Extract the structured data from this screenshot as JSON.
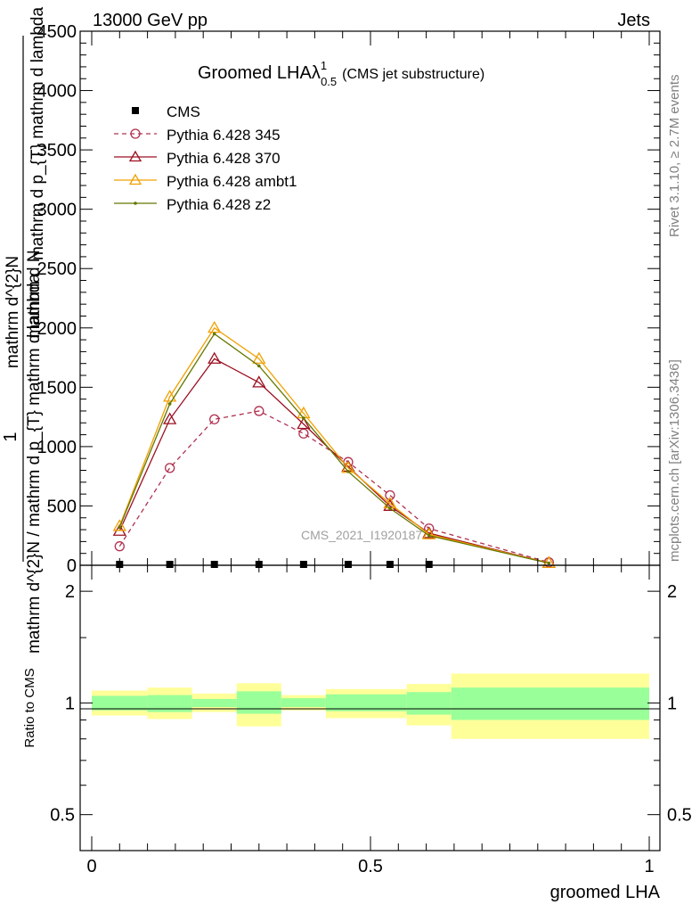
{
  "header": {
    "left": "13000 GeV pp",
    "right": "Jets",
    "watermark": "CMS_2021_I1920187",
    "side_top": "Rivet 3.1.10, ≥ 2.7M events",
    "side_bottom": "mcplots.cern.ch [arXiv:1306.3436]"
  },
  "chart_data": [
    {
      "panel": "main",
      "type": "line",
      "title_main": "Groomed LHAλ",
      "title_sup": "1",
      "title_sub": "0.5",
      "title_note": "(CMS jet substructure)",
      "ylabel": {
        "prefix": "1",
        "numerator": "mathrm d^{2}N",
        "denominator": "mathrm d N / mathrm d p_{T} mathrm d lambda",
        "line1": "mathrm d N",
        "line2": "mathrm d^{2}N / mathrm d p_{T} mathrm d lambda",
        "top_a": "mathrm d^{2}N",
        "top_b": "mathrm d p_{T} mathrm d lambda"
      },
      "xlim": [
        0,
        1
      ],
      "ylim": [
        0,
        4500
      ],
      "yticks": [
        0,
        500,
        1000,
        1500,
        2000,
        2500,
        3000,
        3500,
        4000,
        4500
      ],
      "ytick_labels": [
        "0",
        "500",
        "1000",
        "1500",
        "2000",
        "2500",
        "3000",
        "3500",
        "4000",
        "4500"
      ],
      "series": [
        {
          "name": "CMS",
          "marker": "square",
          "color": "#000000",
          "dashed": false,
          "x": [
            0.05,
            0.14,
            0.22,
            0.3,
            0.38,
            0.46,
            0.535,
            0.605
          ],
          "y": [
            0,
            0,
            0,
            0,
            0,
            0,
            0,
            0
          ]
        },
        {
          "name": "Pythia 6.428 345",
          "marker": "circle",
          "color": "#b03050",
          "dashed": true,
          "x": [
            0.05,
            0.14,
            0.22,
            0.3,
            0.38,
            0.46,
            0.535,
            0.605,
            0.82
          ],
          "y": [
            160,
            820,
            1230,
            1300,
            1110,
            870,
            590,
            310,
            25
          ]
        },
        {
          "name": "Pythia 6.428 370",
          "marker": "triangle",
          "color": "#9b1020",
          "dashed": false,
          "x": [
            0.05,
            0.14,
            0.22,
            0.3,
            0.38,
            0.46,
            0.535,
            0.605,
            0.82
          ],
          "y": [
            290,
            1230,
            1740,
            1540,
            1190,
            830,
            500,
            270,
            20
          ]
        },
        {
          "name": "Pythia 6.428 ambt1",
          "marker": "triangle",
          "color": "#f0a000",
          "dashed": false,
          "x": [
            0.05,
            0.14,
            0.22,
            0.3,
            0.38,
            0.46,
            0.535,
            0.605,
            0.82
          ],
          "y": [
            330,
            1420,
            2000,
            1740,
            1280,
            820,
            520,
            260,
            20
          ]
        },
        {
          "name": "Pythia 6.428 z2",
          "marker": "dot",
          "color": "#667700",
          "dashed": false,
          "x": [
            0.05,
            0.14,
            0.22,
            0.3,
            0.38,
            0.46,
            0.535,
            0.605,
            0.82
          ],
          "y": [
            320,
            1360,
            1950,
            1680,
            1240,
            790,
            480,
            250,
            18
          ]
        }
      ]
    },
    {
      "panel": "ratio",
      "type": "area",
      "ylabel": "Ratio to CMS",
      "xlabel": "groomed LHA",
      "xlim": [
        0,
        1
      ],
      "xticks": [
        0,
        0.5,
        1
      ],
      "xtick_labels": [
        "0",
        "0.5",
        "1"
      ],
      "ylim": [
        0.4,
        2.35
      ],
      "ylog": true,
      "yticks": [
        0.5,
        1,
        2
      ],
      "ytick_labels": [
        "0.5",
        "1",
        "2"
      ],
      "bins": [
        {
          "x0": 0.0,
          "x1": 0.1,
          "y1_lo": 0.955,
          "y1_hi": 1.045,
          "y2_lo": 0.925,
          "y2_hi": 1.08
        },
        {
          "x0": 0.1,
          "x1": 0.18,
          "y1_lo": 0.945,
          "y1_hi": 1.05,
          "y2_lo": 0.905,
          "y2_hi": 1.1
        },
        {
          "x0": 0.18,
          "x1": 0.26,
          "y1_lo": 0.975,
          "y1_hi": 1.025,
          "y2_lo": 0.945,
          "y2_hi": 1.06
        },
        {
          "x0": 0.26,
          "x1": 0.34,
          "y1_lo": 0.935,
          "y1_hi": 1.075,
          "y2_lo": 0.865,
          "y2_hi": 1.13
        },
        {
          "x0": 0.34,
          "x1": 0.42,
          "y1_lo": 0.975,
          "y1_hi": 1.03,
          "y2_lo": 0.955,
          "y2_hi": 1.05
        },
        {
          "x0": 0.42,
          "x1": 0.5,
          "y1_lo": 0.95,
          "y1_hi": 1.055,
          "y2_lo": 0.91,
          "y2_hi": 1.09
        },
        {
          "x0": 0.5,
          "x1": 0.565,
          "y1_lo": 0.95,
          "y1_hi": 1.055,
          "y2_lo": 0.91,
          "y2_hi": 1.09
        },
        {
          "x0": 0.565,
          "x1": 0.645,
          "y1_lo": 0.93,
          "y1_hi": 1.07,
          "y2_lo": 0.87,
          "y2_hi": 1.125
        },
        {
          "x0": 0.645,
          "x1": 1.0,
          "y1_lo": 0.9,
          "y1_hi": 1.1,
          "y2_lo": 0.8,
          "y2_hi": 1.2
        }
      ],
      "band_colors": {
        "inner": "#99ff99",
        "outer": "#ffff99"
      }
    }
  ]
}
